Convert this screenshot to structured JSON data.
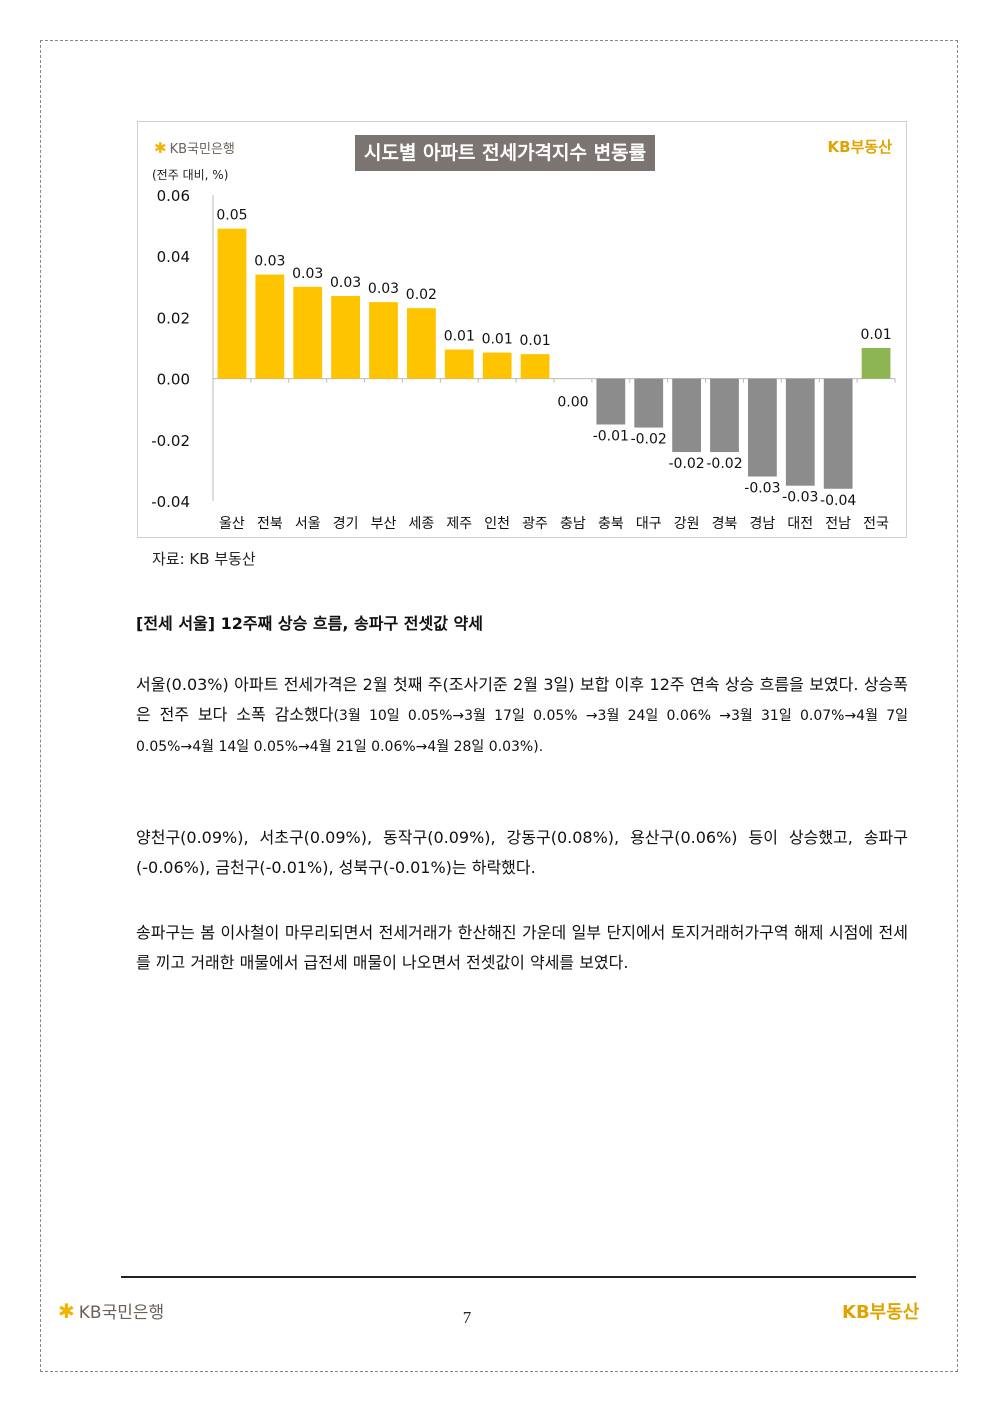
{
  "header": {
    "bank_logo": "KB국민은행",
    "realty_logo": "KB부동산"
  },
  "chart_data": {
    "type": "bar",
    "title": "시도별 아파트 전세가격지수 변동률",
    "unit_label": "(전주 대비, %)",
    "categories": [
      "울산",
      "전북",
      "서울",
      "경기",
      "부산",
      "세종",
      "제주",
      "인천",
      "광주",
      "충남",
      "충북",
      "대구",
      "강원",
      "경북",
      "경남",
      "대전",
      "전남",
      "전국"
    ],
    "values": [
      0.049,
      0.034,
      0.03,
      0.027,
      0.025,
      0.023,
      0.0095,
      0.0085,
      0.008,
      0.0,
      -0.015,
      -0.016,
      -0.024,
      -0.024,
      -0.032,
      -0.035,
      -0.036,
      0.01
    ],
    "data_labels": [
      "0.05",
      "0.03",
      "0.03",
      "0.03",
      "0.03",
      "0.02",
      "0.01",
      "0.01",
      "0.01",
      "0.00",
      "-0.01",
      "-0.02",
      "-0.02",
      "-0.02",
      "-0.03",
      "-0.03",
      "-0.04",
      "0.01"
    ],
    "y_ticks": [
      "0.06",
      "0.04",
      "0.02",
      "0.00",
      "-0.02",
      "-0.04"
    ],
    "ylim": [
      -0.04,
      0.06
    ],
    "grid": false,
    "legend": "none",
    "colors": {
      "positive": "#ffc400",
      "negative": "#8c8c8c",
      "national": "#8db552"
    }
  },
  "source_note": "자료: KB 부동산",
  "section_heading": "[전세 서울] 12주째 상승 흐름, 송파구 전셋값 약세",
  "paragraphs": {
    "p1_main": "서울(0.03%) 아파트 전세가격은 2월 첫째 주(조사기준 2월 3일) 보합 이후 12주 연속 상승 흐름을 보였다. 상승폭은 전주 보다 소폭 감소했다",
    "p1_detail": "(3월 10일 0.05%→3월 17일 0.05% →3월 24일 0.06% →3월 31일 0.07%→4월 7일 0.05%→4월 14일 0.05%→4월 21일 0.06%→4월 28일 0.03%).",
    "p2": "양천구(0.09%), 서초구(0.09%), 동작구(0.09%), 강동구(0.08%), 용산구(0.06%) 등이 상승했고, 송파구(-0.06%), 금천구(-0.01%), 성북구(-0.01%)는 하락했다.",
    "p3": "송파구는 봄 이사철이 마무리되면서 전세거래가 한산해진 가운데 일부 단지에서 토지거래허가구역 해제 시점에 전세를 끼고 거래한 매물에서 급전세 매물이 나오면서 전셋값이 약세를 보였다."
  },
  "footer": {
    "bank_logo": "KB국민은행",
    "page_number": "7",
    "realty_logo": "KB부동산"
  }
}
